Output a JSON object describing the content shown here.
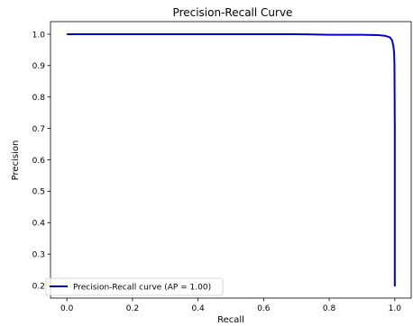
{
  "chart_data": {
    "type": "line",
    "title": "Precision-Recall Curve",
    "xlabel": "Recall",
    "ylabel": "Precision",
    "xlim": [
      -0.05,
      1.05
    ],
    "ylim": [
      0.16,
      1.04
    ],
    "xticks": [
      "0.0",
      "0.2",
      "0.4",
      "0.6",
      "0.8",
      "1.0"
    ],
    "yticks": [
      "0.2",
      "0.3",
      "0.4",
      "0.5",
      "0.6",
      "0.7",
      "0.8",
      "0.9",
      "1.0"
    ],
    "grid": false,
    "legend": {
      "placement": "lower-left",
      "label": "Precision-Recall curve (AP = 1.00)"
    },
    "series": [
      {
        "name": "Precision-Recall curve (AP = 1.00)",
        "color": "#0000cc",
        "x": [
          0.0,
          0.1,
          0.3,
          0.5,
          0.7,
          0.75,
          0.8,
          0.9,
          0.95,
          0.97,
          0.985,
          0.992,
          0.996,
          0.998,
          0.999,
          1.0,
          1.0
        ],
        "y": [
          1.0,
          1.0,
          1.0,
          1.0,
          1.0,
          0.999,
          0.998,
          0.998,
          0.997,
          0.995,
          0.99,
          0.98,
          0.96,
          0.94,
          0.9,
          0.7,
          0.197
        ]
      }
    ]
  }
}
